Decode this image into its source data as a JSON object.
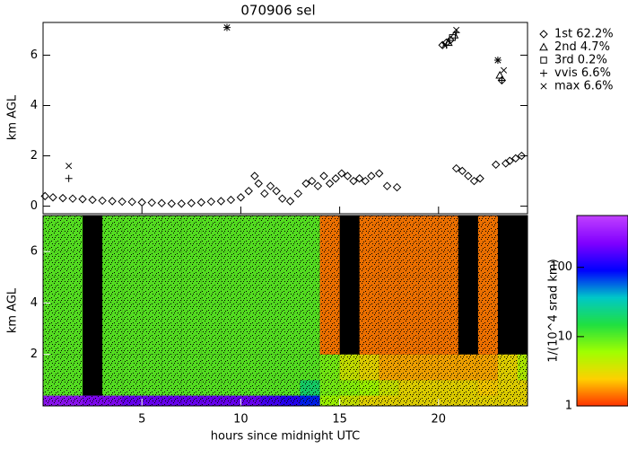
{
  "chart_data": [
    {
      "type": "scatter",
      "title": "070906 sel",
      "ylabel": "km AGL",
      "xlim": [
        0,
        24.5
      ],
      "ylim": [
        -0.3,
        7.3
      ],
      "yticks": [
        0,
        2,
        4,
        6
      ],
      "series": [
        {
          "name": "1st 62.2%",
          "marker": "diamond",
          "color": "#000000",
          "x": [
            0.1,
            0.5,
            1.0,
            1.5,
            2.0,
            2.5,
            3.0,
            3.5,
            4.0,
            4.5,
            5.0,
            5.5,
            6.0,
            6.5,
            7.0,
            7.5,
            8.0,
            8.5,
            9.0,
            9.5,
            10.0,
            10.4,
            10.7,
            10.9,
            11.2,
            11.5,
            11.8,
            12.1,
            12.5,
            12.9,
            13.3,
            13.6,
            13.9,
            14.2,
            14.5,
            14.8,
            15.1,
            15.4,
            15.7,
            16.0,
            16.3,
            16.6,
            17.0,
            17.4,
            17.9,
            20.2,
            20.4,
            20.6,
            20.9,
            21.2,
            21.5,
            21.8,
            22.1,
            22.9,
            23.2,
            23.4,
            23.6,
            23.9,
            24.2
          ],
          "values": [
            0.4,
            0.35,
            0.32,
            0.3,
            0.28,
            0.25,
            0.22,
            0.2,
            0.18,
            0.17,
            0.15,
            0.14,
            0.12,
            0.1,
            0.1,
            0.12,
            0.15,
            0.18,
            0.2,
            0.25,
            0.35,
            0.6,
            1.2,
            0.9,
            0.5,
            0.8,
            0.6,
            0.3,
            0.2,
            0.5,
            0.9,
            1.0,
            0.8,
            1.2,
            0.9,
            1.1,
            1.3,
            1.2,
            1.0,
            1.1,
            1.0,
            1.2,
            1.3,
            0.8,
            0.75,
            6.4,
            6.5,
            6.6,
            1.5,
            1.4,
            1.2,
            1.0,
            1.1,
            1.65,
            5.0,
            1.7,
            1.8,
            1.9,
            2.0
          ]
        },
        {
          "name": "2nd 4.7%",
          "marker": "triangle",
          "color": "#000000",
          "x": [
            20.5,
            20.8,
            23.1
          ],
          "values": [
            6.5,
            6.8,
            5.2
          ]
        },
        {
          "name": "3rd 0.2%",
          "marker": "square",
          "color": "#000000",
          "x": [
            20.7
          ],
          "values": [
            6.7
          ]
        },
        {
          "name": "vvis 6.6%",
          "marker": "plus",
          "color": "#000000",
          "x": [
            1.3,
            9.3,
            20.4,
            20.9,
            23.0,
            23.2
          ],
          "values": [
            1.1,
            7.1,
            6.4,
            6.9,
            5.8,
            5.0
          ]
        },
        {
          "name": "max 6.6%",
          "marker": "x",
          "color": "#000000",
          "x": [
            1.3,
            9.3,
            20.3,
            20.9,
            23.0,
            23.3
          ],
          "values": [
            1.6,
            7.1,
            6.4,
            7.0,
            5.8,
            5.4
          ]
        }
      ]
    },
    {
      "type": "heatmap",
      "xlabel": "hours since midnight UTC",
      "ylabel": "km AGL",
      "xlim": [
        0,
        24.5
      ],
      "ylim": [
        0,
        7.4
      ],
      "xticks": [
        5,
        10,
        15,
        20
      ],
      "yticks": [
        2,
        4,
        6
      ],
      "x_edges": [
        0,
        1,
        2,
        3,
        4,
        5,
        6,
        7,
        8,
        9,
        10,
        11,
        12,
        13,
        14,
        15,
        16,
        17,
        18,
        19,
        20,
        21,
        22,
        23,
        24,
        24.5
      ],
      "y_edges": [
        0,
        0.4,
        1,
        2,
        3,
        4,
        5,
        6,
        7.4
      ],
      "zlim": [
        1,
        560
      ],
      "zticks": [
        1,
        10,
        100
      ],
      "log_z": true,
      "zlabel": "1/(10^4 srad km)",
      "colormap": [
        "#ff3000",
        "#ffd000",
        "#a0ff00",
        "#20e040",
        "#00c8c8",
        "#0000ff",
        "#8000ff",
        "#c040ff"
      ],
      "values": [
        [
          300,
          300,
          250,
          250,
          200,
          200,
          200,
          200,
          200,
          200,
          200,
          150,
          120,
          80,
          6,
          4,
          3,
          3,
          3,
          3,
          3,
          3,
          3,
          3,
          3
        ],
        [
          10,
          10,
          null,
          10,
          10,
          10,
          10,
          10,
          10,
          10,
          10,
          10,
          10,
          20,
          8,
          7,
          6,
          4,
          3,
          3,
          3,
          3,
          2.5,
          3,
          3
        ],
        [
          10,
          10,
          null,
          10,
          10,
          10,
          10,
          10,
          10,
          10,
          10,
          10,
          10,
          10,
          8,
          4,
          3,
          2,
          2,
          2,
          2,
          2,
          2,
          3,
          5
        ],
        [
          10,
          10,
          null,
          10,
          10,
          10,
          10,
          10,
          10,
          10,
          10,
          10,
          10,
          10,
          1.5,
          null,
          1.5,
          1.5,
          1.5,
          1.5,
          1.5,
          null,
          1.5,
          null,
          null
        ],
        [
          10,
          10,
          null,
          10,
          10,
          10,
          10,
          10,
          10,
          10,
          10,
          10,
          10,
          10,
          1.5,
          null,
          1.5,
          1.5,
          1.5,
          1.5,
          1.5,
          null,
          1.5,
          null,
          null
        ],
        [
          10,
          10,
          null,
          10,
          10,
          10,
          10,
          10,
          10,
          10,
          10,
          10,
          10,
          10,
          1.5,
          null,
          1.5,
          1.5,
          1.5,
          1.5,
          1.5,
          null,
          1.5,
          null,
          null
        ],
        [
          10,
          10,
          null,
          10,
          10,
          10,
          10,
          10,
          10,
          10,
          10,
          10,
          10,
          10,
          1.5,
          null,
          1.5,
          1.5,
          1.5,
          1.5,
          1.5,
          null,
          1.5,
          null,
          null
        ],
        [
          10,
          10,
          null,
          10,
          10,
          10,
          10,
          10,
          10,
          10,
          10,
          10,
          10,
          10,
          1.5,
          null,
          1.5,
          1.5,
          1.5,
          1.5,
          1.5,
          null,
          1.5,
          null,
          null
        ]
      ]
    }
  ]
}
